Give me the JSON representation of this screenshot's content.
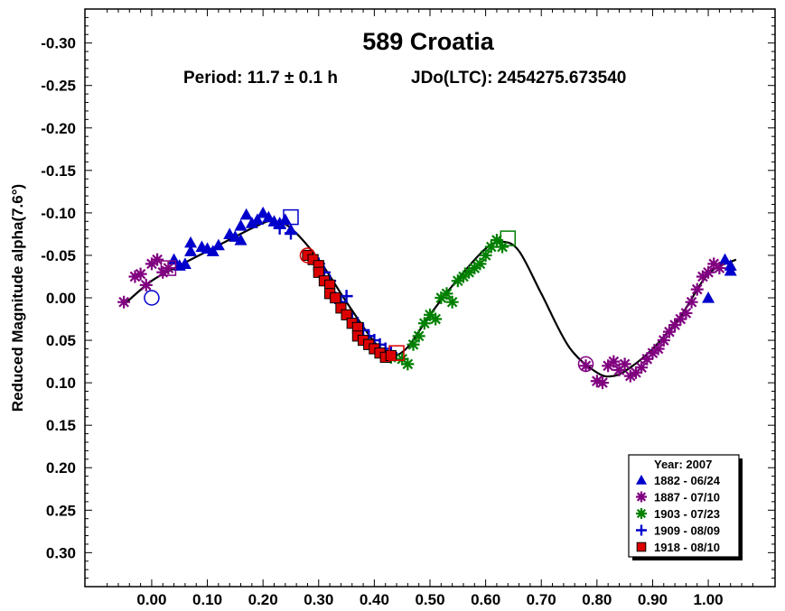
{
  "chart_data": {
    "type": "scatter",
    "title": "589 Croatia",
    "subtitle_period": "Period: 11.7 ± 0.1 h",
    "subtitle_epoch": "JDo(LTC): 2454275.673540",
    "ylabel": "Reduced Magnitude alpha(7.6°)",
    "xlabel": "",
    "xlim": [
      -0.12,
      1.12
    ],
    "ylim": [
      -0.34,
      0.34
    ],
    "y_inverted": true,
    "x_ticks": [
      "0.00",
      "0.10",
      "0.20",
      "0.30",
      "0.40",
      "0.50",
      "0.60",
      "0.70",
      "0.80",
      "0.90",
      "1.00"
    ],
    "y_ticks": [
      "-0.30",
      "-0.25",
      "-0.20",
      "-0.15",
      "-0.10",
      "-0.05",
      "0.00",
      "0.05",
      "0.10",
      "0.15",
      "0.20",
      "0.25",
      "0.30"
    ],
    "grid": false,
    "legend": {
      "title": "Year: 2007",
      "placement": "bottom-right"
    },
    "fit_curve": {
      "name": "",
      "color": "#000000",
      "points": [
        [
          -0.05,
          0.008
        ],
        [
          0.0,
          -0.02
        ],
        [
          0.05,
          -0.038
        ],
        [
          0.1,
          -0.055
        ],
        [
          0.15,
          -0.072
        ],
        [
          0.2,
          -0.088
        ],
        [
          0.22,
          -0.09
        ],
        [
          0.25,
          -0.082
        ],
        [
          0.3,
          -0.045
        ],
        [
          0.35,
          0.005
        ],
        [
          0.4,
          0.052
        ],
        [
          0.43,
          0.068
        ],
        [
          0.46,
          0.058
        ],
        [
          0.5,
          0.02
        ],
        [
          0.55,
          -0.022
        ],
        [
          0.6,
          -0.058
        ],
        [
          0.63,
          -0.066
        ],
        [
          0.66,
          -0.055
        ],
        [
          0.7,
          -0.005
        ],
        [
          0.75,
          0.058
        ],
        [
          0.8,
          0.088
        ],
        [
          0.83,
          0.092
        ],
        [
          0.86,
          0.082
        ],
        [
          0.9,
          0.06
        ],
        [
          0.95,
          0.022
        ],
        [
          1.0,
          -0.028
        ],
        [
          1.05,
          -0.045
        ]
      ]
    },
    "series": [
      {
        "name": "1882 - 06/24",
        "color": "#0000cc",
        "marker": "triangle",
        "x": [
          0.04,
          0.05,
          0.06,
          0.07,
          0.07,
          0.09,
          0.1,
          0.11,
          0.12,
          0.14,
          0.15,
          0.16,
          0.16,
          0.17,
          0.18,
          0.19,
          0.2,
          0.21,
          0.22,
          0.23,
          0.24,
          0.25,
          1.0,
          1.03,
          1.04,
          1.04
        ],
        "y": [
          -0.045,
          -0.038,
          -0.04,
          -0.065,
          -0.055,
          -0.06,
          -0.058,
          -0.055,
          -0.062,
          -0.075,
          -0.072,
          -0.085,
          -0.068,
          -0.098,
          -0.088,
          -0.092,
          -0.1,
          -0.095,
          -0.09,
          -0.088,
          -0.092,
          -0.08,
          0.0,
          -0.045,
          -0.038,
          -0.032
        ]
      },
      {
        "name": "1887 - 07/10",
        "color": "#800080",
        "marker": "asterisk",
        "x": [
          -0.05,
          -0.03,
          -0.02,
          -0.01,
          0.0,
          0.01,
          0.02,
          0.03,
          0.78,
          0.8,
          0.81,
          0.82,
          0.83,
          0.84,
          0.85,
          0.86,
          0.87,
          0.88,
          0.89,
          0.9,
          0.91,
          0.92,
          0.93,
          0.94,
          0.95,
          0.96,
          0.97,
          0.98,
          0.99,
          1.0,
          1.01,
          1.02
        ],
        "y": [
          0.005,
          -0.025,
          -0.028,
          -0.015,
          -0.04,
          -0.045,
          -0.03,
          -0.035,
          0.08,
          0.098,
          0.1,
          0.08,
          0.075,
          0.085,
          0.078,
          0.092,
          0.088,
          0.082,
          0.072,
          0.065,
          0.06,
          0.05,
          0.04,
          0.032,
          0.025,
          0.018,
          0.005,
          -0.01,
          -0.025,
          -0.03,
          -0.04,
          -0.035
        ]
      },
      {
        "name": "1903 - 07/23",
        "color": "#008000",
        "marker": "asterisk",
        "x": [
          0.43,
          0.45,
          0.46,
          0.47,
          0.48,
          0.49,
          0.5,
          0.51,
          0.52,
          0.53,
          0.54,
          0.55,
          0.56,
          0.57,
          0.58,
          0.59,
          0.6,
          0.61,
          0.62,
          0.63
        ],
        "y": [
          0.07,
          0.072,
          0.078,
          0.055,
          0.045,
          0.03,
          0.02,
          0.025,
          0.0,
          -0.005,
          0.005,
          -0.02,
          -0.025,
          -0.03,
          -0.035,
          -0.04,
          -0.05,
          -0.06,
          -0.068,
          -0.06
        ]
      },
      {
        "name": "1909 - 08/09",
        "color": "#0000cc",
        "marker": "plus",
        "x": [
          0.23,
          0.25,
          0.3,
          0.31,
          0.32,
          0.33,
          0.34,
          0.35,
          0.36,
          0.37,
          0.38,
          0.39,
          0.4,
          0.41,
          0.42,
          0.43
        ],
        "y": [
          -0.082,
          -0.076,
          -0.04,
          -0.03,
          -0.02,
          0.0,
          0.005,
          -0.002,
          0.025,
          0.03,
          0.038,
          0.045,
          0.05,
          0.055,
          0.06,
          0.065
        ]
      },
      {
        "name": "1918 - 08/10",
        "color": "#dd0000",
        "marker": "square",
        "x": [
          0.28,
          0.29,
          0.3,
          0.3,
          0.31,
          0.32,
          0.32,
          0.33,
          0.34,
          0.35,
          0.36,
          0.37,
          0.37,
          0.38,
          0.39,
          0.4,
          0.41,
          0.42,
          0.43
        ],
        "y": [
          -0.05,
          -0.045,
          -0.038,
          -0.03,
          -0.02,
          -0.015,
          -0.005,
          0.0,
          0.012,
          0.02,
          0.03,
          0.035,
          0.045,
          0.05,
          0.055,
          0.06,
          0.065,
          0.07,
          0.068
        ]
      }
    ],
    "open_markers": [
      {
        "shape": "circle",
        "color": "#0000cc",
        "x": 0.0,
        "y": 0.0
      },
      {
        "shape": "square",
        "color": "#0000cc",
        "x": 0.25,
        "y": -0.095
      },
      {
        "shape": "circle",
        "color": "#dd0000",
        "x": 0.28,
        "y": -0.05
      },
      {
        "shape": "square",
        "color": "#dd0000",
        "x": 0.44,
        "y": 0.065
      },
      {
        "shape": "square",
        "color": "#008000",
        "x": 0.64,
        "y": -0.07
      },
      {
        "shape": "circle",
        "color": "#800080",
        "x": 0.78,
        "y": 0.078
      },
      {
        "shape": "square",
        "color": "#800080",
        "x": 0.03,
        "y": -0.035
      }
    ]
  }
}
